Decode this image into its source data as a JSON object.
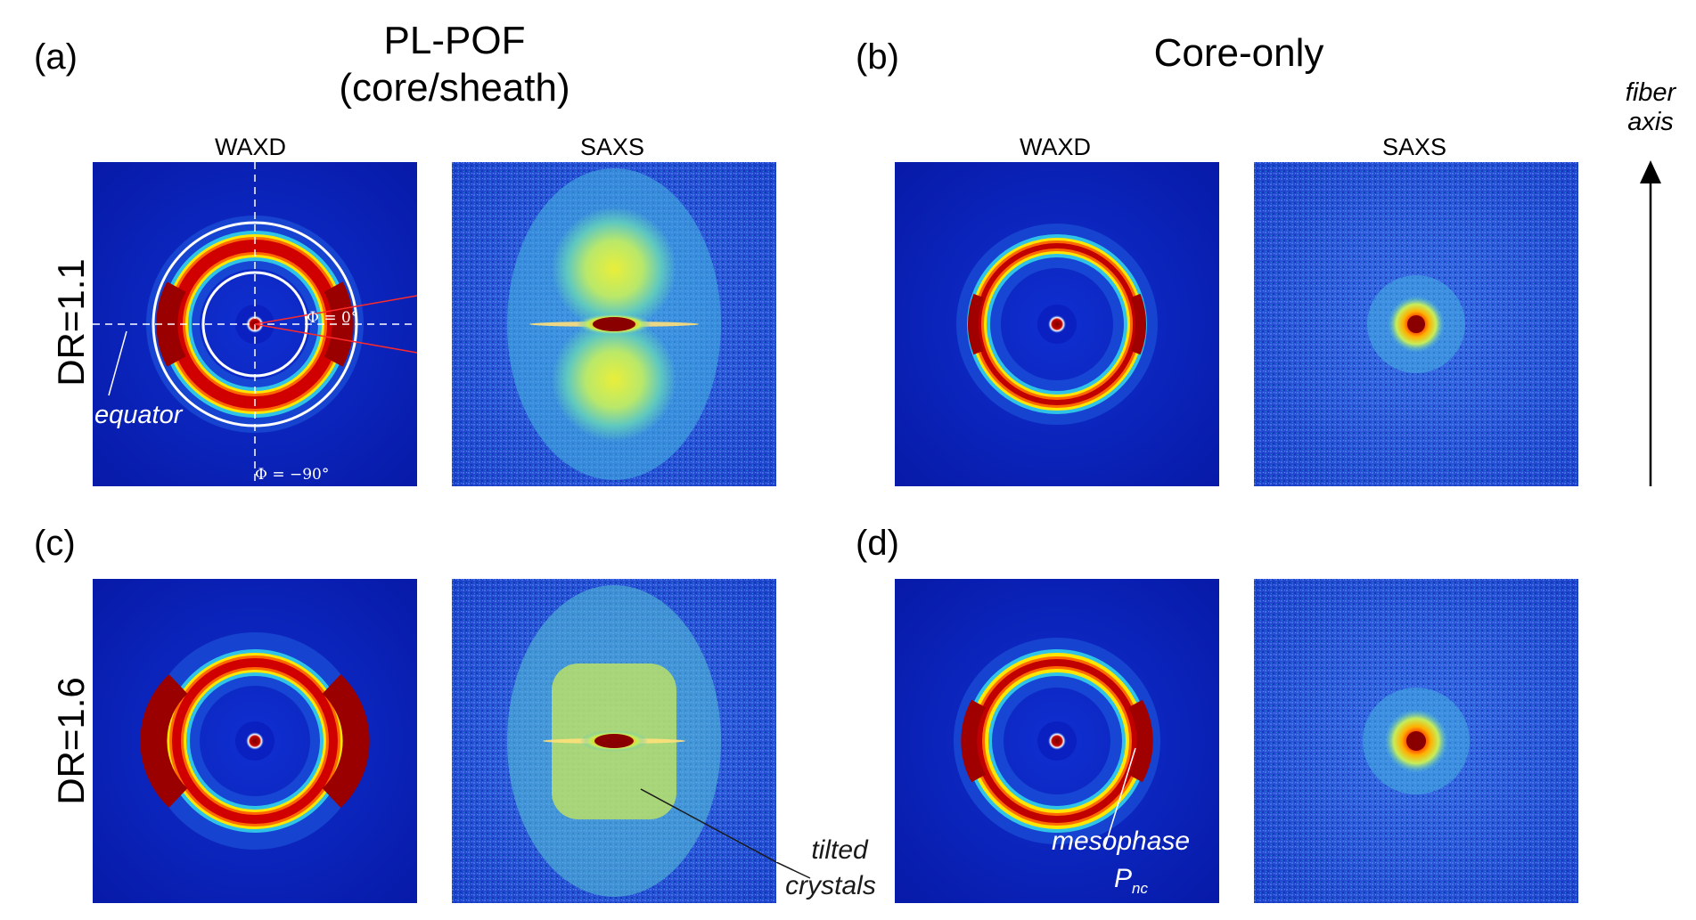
{
  "figure": {
    "groups": [
      {
        "letter": "(a)",
        "title_line1": "PL-POF",
        "title_line2": "(core/sheath)"
      },
      {
        "letter": "(b)",
        "title_line1": "Core-only"
      }
    ],
    "row_letters": {
      "c": "(c)",
      "d": "(d)"
    },
    "column_labels": {
      "waxd": "WAXD",
      "saxs": "SAXS"
    },
    "row_labels": {
      "row1": "DR=1.1",
      "row2": "DR=1.6"
    },
    "fiber_axis": {
      "line1": "fiber",
      "line2": "axis"
    },
    "annotations": {
      "equator": "equator",
      "phi_zero": "Φ = 0°",
      "phi_minus90": "Φ = −90°",
      "tilted_line1": "tilted",
      "tilted_line2": "crystals",
      "meso_line1": "mesophase",
      "meso_p": "P",
      "meso_sub": "nc"
    },
    "colors": {
      "background": "#0a1fb8",
      "ring_red": "#9b0000",
      "ring_yellow": "#ffe600",
      "saxs_bg": "#1f49d6"
    }
  }
}
